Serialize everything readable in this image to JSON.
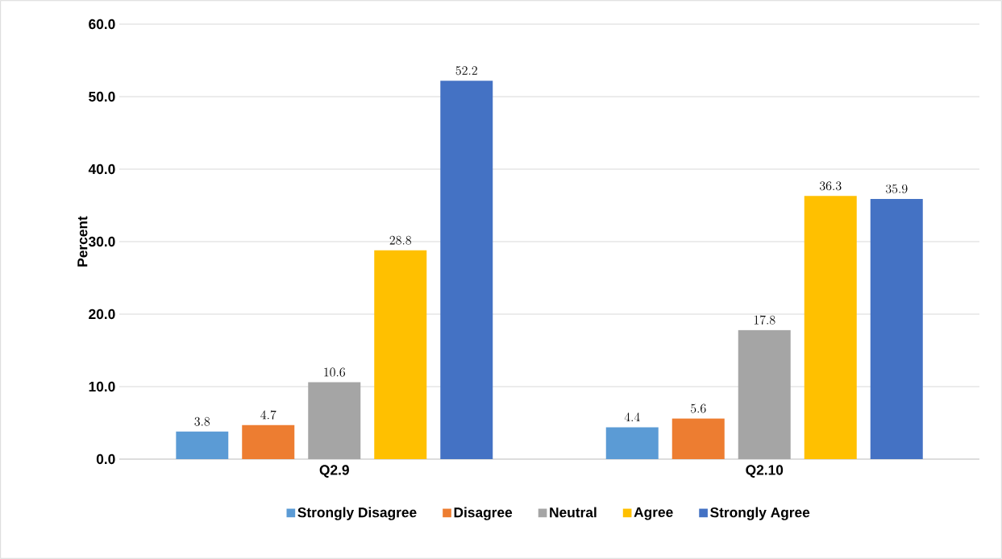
{
  "chart_data": {
    "type": "bar",
    "ylabel": "Percent",
    "categories": [
      "Q2.9",
      "Q2.10"
    ],
    "series": [
      {
        "name": "Strongly Disagree",
        "color": "#5b9bd5",
        "values": [
          3.8,
          4.4
        ]
      },
      {
        "name": "Disagree",
        "color": "#ed7d31",
        "values": [
          4.7,
          5.6
        ]
      },
      {
        "name": "Neutral",
        "color": "#a5a5a5",
        "values": [
          10.6,
          17.8
        ]
      },
      {
        "name": "Agree",
        "color": "#ffc000",
        "values": [
          28.8,
          36.3
        ]
      },
      {
        "name": "Strongly Agree",
        "color": "#4472c4",
        "values": [
          52.2,
          35.9
        ]
      }
    ],
    "ylim": [
      0,
      60
    ],
    "yticks": [
      {
        "value": 0,
        "label": "0.0"
      },
      {
        "value": 10,
        "label": "10.0"
      },
      {
        "value": 20,
        "label": "20.0"
      },
      {
        "value": 30,
        "label": "30.0"
      },
      {
        "value": 40,
        "label": "40.0"
      },
      {
        "value": 50,
        "label": "50.0"
      },
      {
        "value": 60,
        "label": "60.0"
      }
    ],
    "grid": "y",
    "legend": "bottom",
    "data_labels": true
  }
}
